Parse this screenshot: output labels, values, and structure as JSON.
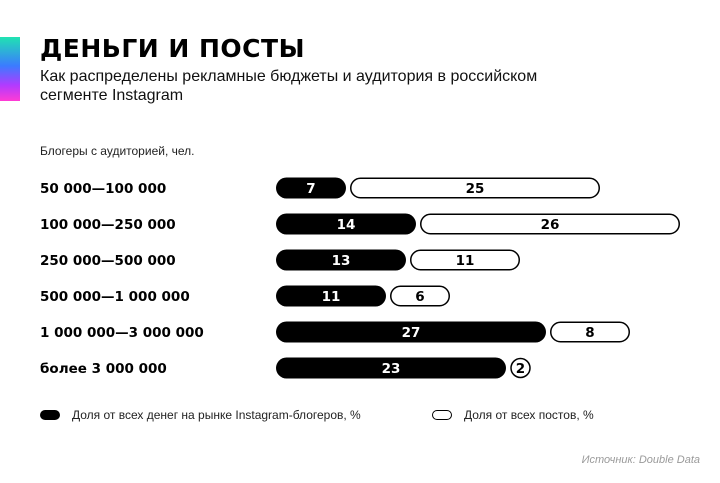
{
  "header": {
    "title": "ДЕНЬГИ И ПОСТЫ",
    "subtitle": "Как распределены рекламные бюджеты и аудитория в российском сегменте Instagram"
  },
  "section_label": "Блогеры с аудиторией, чел.",
  "legend": {
    "money": "Доля от всех денег на рынке Instagram-блогеров, %",
    "posts": "Доля от всех постов, %"
  },
  "source": "Источник: Double Data",
  "colors": {
    "money": "#000000",
    "posts": "#ffffff",
    "outline": "#000000"
  },
  "chart_data": {
    "type": "bar",
    "orientation": "horizontal",
    "stacked": true,
    "categories": [
      "50 000—100 000",
      "100 000—250 000",
      "250 000—500 000",
      "500 000—1 000 000",
      "1 000 000—3 000 000",
      "более 3 000 000"
    ],
    "series": [
      {
        "name": "Доля от всех денег на рынке Instagram-блогеров, %",
        "values": [
          7,
          14,
          13,
          11,
          27,
          23
        ]
      },
      {
        "name": "Доля от всех постов, %",
        "values": [
          25,
          26,
          11,
          6,
          8,
          2
        ]
      }
    ],
    "legend_position": "bottom",
    "grid": false
  }
}
